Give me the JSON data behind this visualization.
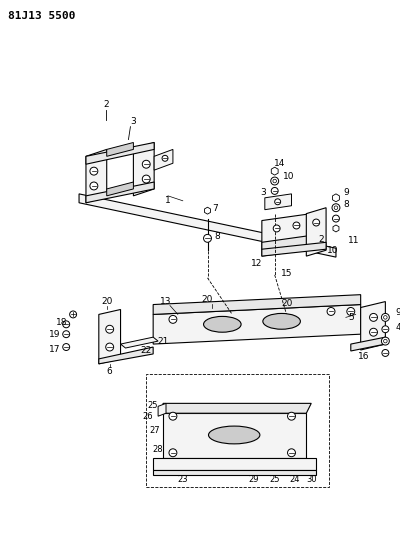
{
  "title": "81J13 5500",
  "bg_color": "#ffffff",
  "line_color": "#000000",
  "title_fontsize": 8,
  "gray_fill": "#e8e8e8",
  "light_fill": "#f4f4f4"
}
